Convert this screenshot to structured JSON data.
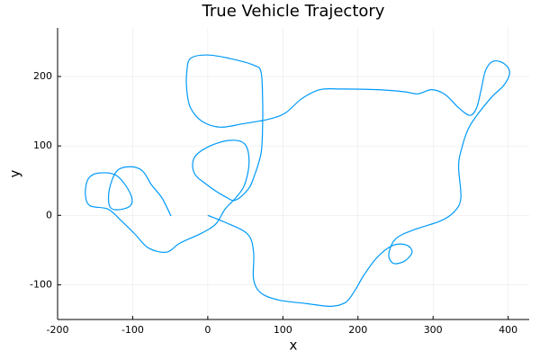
{
  "chart_data": {
    "type": "line",
    "title": "True Vehicle Trajectory",
    "x_label": "x",
    "y_label": "y",
    "series": [
      {
        "color": "#009af9",
        "x": [
          0,
          23,
          53,
          61,
          61,
          71,
          95,
          131,
          164,
          184,
          196,
          208,
          226,
          247,
          265,
          272,
          262,
          247,
          241,
          250,
          274,
          310,
          328,
          337,
          334,
          338,
          349,
          376,
          394,
          402,
          394,
          380,
          370,
          364,
          358,
          349,
          334,
          316,
          298,
          280,
          262,
          226,
          178,
          149,
          125,
          104,
          83,
          47,
          17,
          -7,
          -23,
          -28,
          -28,
          -23,
          -1,
          29,
          62,
          71,
          73,
          73,
          71,
          62,
          54,
          37,
          23,
          -1,
          -18,
          -18,
          1,
          29,
          49,
          55,
          49,
          37,
          23,
          11,
          -7,
          -37,
          -55,
          -79,
          -97,
          -115,
          -133,
          -157,
          -163,
          -159,
          -145,
          -121,
          -103,
          -103,
          -121,
          -131,
          -131,
          -121,
          -103,
          -87,
          -75,
          -61,
          -49
        ],
        "values": [
          0,
          -10,
          -27,
          -53,
          -92,
          -112,
          -122,
          -127,
          -131,
          -125,
          -108,
          -86,
          -60,
          -43,
          -43,
          -53,
          -66,
          -69,
          -56,
          -34,
          -21,
          -8,
          5,
          25,
          70,
          96,
          129,
          168,
          187,
          206,
          219,
          222,
          209,
          181,
          155,
          144,
          155,
          174,
          181,
          175,
          178,
          181,
          182,
          181,
          168,
          148,
          139,
          132,
          127,
          135,
          155,
          181,
          206,
          226,
          231,
          226,
          216,
          206,
          168,
          129,
          90,
          57,
          38,
          22,
          27,
          44,
          61,
          83,
          99,
          108,
          103,
          77,
          44,
          25,
          9,
          -12,
          -25,
          -40,
          -53,
          -47,
          -27,
          -8,
          9,
          14,
          31,
          53,
          61,
          57,
          31,
          14,
          8,
          14,
          38,
          64,
          70,
          64,
          44,
          25,
          -1
        ]
      }
    ],
    "xlim": [
      -200,
      428
    ],
    "ylim": [
      -150,
      270
    ],
    "xticks": [
      -200,
      -100,
      0,
      100,
      200,
      300,
      400
    ],
    "yticks": [
      -100,
      0,
      100,
      200
    ],
    "grid": true
  }
}
